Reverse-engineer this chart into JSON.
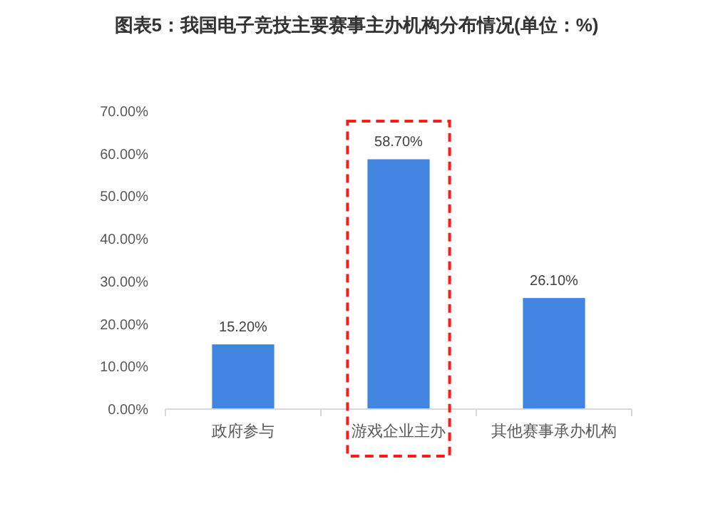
{
  "chart_data": {
    "type": "bar",
    "title": "图表5：我国电子竞技主要赛事主办机构分布情况(单位：%)",
    "categories": [
      "政府参与",
      "游戏企业主办",
      "其他赛事承办机构"
    ],
    "values": [
      15.2,
      58.7,
      26.1
    ],
    "color": "#4185e0",
    "value_labels": [
      "15.20%",
      "58.70%",
      "26.10%"
    ],
    "ylim": [
      0,
      70
    ],
    "yticks": [
      {
        "value": 0,
        "label": "0.00%"
      },
      {
        "value": 10,
        "label": "10.00%"
      },
      {
        "value": 20,
        "label": "20.00%"
      },
      {
        "value": 30,
        "label": "30.00%"
      },
      {
        "value": 40,
        "label": "40.00%"
      },
      {
        "value": 50,
        "label": "50.00%"
      },
      {
        "value": 60,
        "label": "60.00%"
      },
      {
        "value": 70,
        "label": "70.00%"
      }
    ],
    "grid": false
  }
}
